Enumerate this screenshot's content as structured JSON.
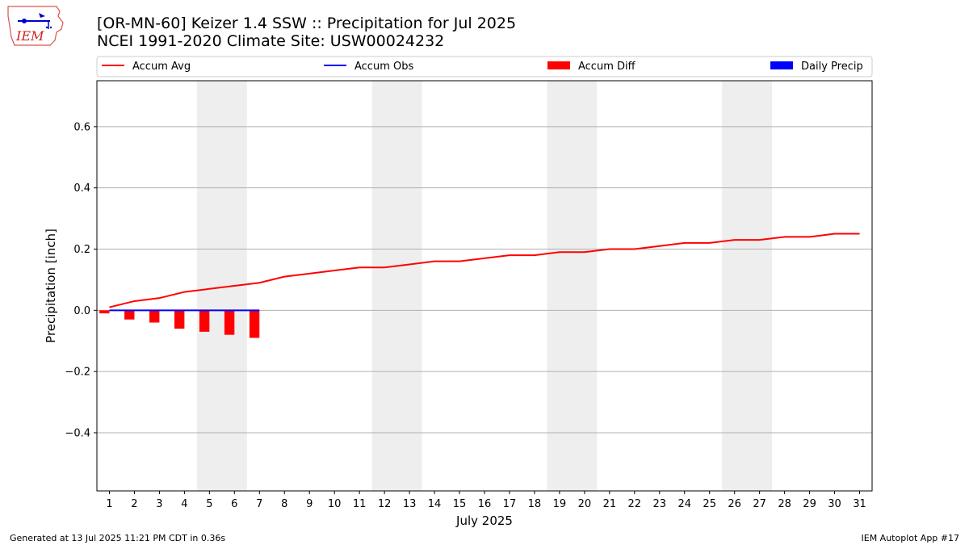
{
  "header": {
    "title_line1": "[OR-MN-60] Keizer 1.4 SSW :: Precipitation for Jul 2025",
    "title_line2": "NCEI 1991-2020 Climate Site: USW00024232",
    "logo_text": "IEM"
  },
  "footer": {
    "generated": "Generated at 13 Jul 2025 11:21 PM CDT in 0.36s",
    "app": "IEM Autoplot App #17"
  },
  "colors": {
    "accum_avg": "#ff0000",
    "accum_obs": "#0000ff",
    "accum_diff": "#ff0000",
    "daily_precip": "#0000ff",
    "weekend_shade": "#eeeeee",
    "grid": "#b0b0b0"
  },
  "chart_data": {
    "type": "line",
    "xlabel": "July 2025",
    "ylabel": "Precipitation [inch]",
    "xlim": [
      0.5,
      31.5
    ],
    "ylim": [
      -0.59,
      0.75
    ],
    "yticks": [
      -0.4,
      -0.2,
      0.0,
      0.2,
      0.4,
      0.6
    ],
    "ytick_labels": [
      "−0.4",
      "−0.2",
      "0.0",
      "0.2",
      "0.4",
      "0.6"
    ],
    "grid": "horizontal",
    "legend_placement": "top",
    "weekend_shading": [
      [
        5,
        6
      ],
      [
        12,
        13
      ],
      [
        19,
        20
      ],
      [
        26,
        27
      ]
    ],
    "x": [
      1,
      2,
      3,
      4,
      5,
      6,
      7,
      8,
      9,
      10,
      11,
      12,
      13,
      14,
      15,
      16,
      17,
      18,
      19,
      20,
      21,
      22,
      23,
      24,
      25,
      26,
      27,
      28,
      29,
      30,
      31
    ],
    "series": [
      {
        "name": "Accum Avg",
        "kind": "line",
        "x": [
          1,
          2,
          3,
          4,
          5,
          6,
          7,
          8,
          9,
          10,
          11,
          12,
          13,
          14,
          15,
          16,
          17,
          18,
          19,
          20,
          21,
          22,
          23,
          24,
          25,
          26,
          27,
          28,
          29,
          30,
          31
        ],
        "values": [
          0.01,
          0.03,
          0.04,
          0.06,
          0.07,
          0.08,
          0.09,
          0.11,
          0.12,
          0.13,
          0.14,
          0.14,
          0.15,
          0.16,
          0.16,
          0.17,
          0.18,
          0.18,
          0.19,
          0.19,
          0.2,
          0.2,
          0.21,
          0.22,
          0.22,
          0.23,
          0.23,
          0.24,
          0.24,
          0.25,
          0.25
        ]
      },
      {
        "name": "Accum Obs",
        "kind": "line",
        "x": [
          1,
          2,
          3,
          4,
          5,
          6,
          7
        ],
        "values": [
          0,
          0,
          0,
          0,
          0,
          0,
          0
        ]
      },
      {
        "name": "Accum Diff",
        "kind": "bar",
        "x": [
          1,
          2,
          3,
          4,
          5,
          6,
          7
        ],
        "values": [
          -0.01,
          -0.03,
          -0.04,
          -0.06,
          -0.07,
          -0.08,
          -0.09
        ]
      },
      {
        "name": "Daily Precip",
        "kind": "bar",
        "x": [
          1,
          2,
          3,
          4,
          5,
          6,
          7
        ],
        "values": [
          0,
          0,
          0,
          0,
          0,
          0,
          0
        ]
      }
    ]
  }
}
